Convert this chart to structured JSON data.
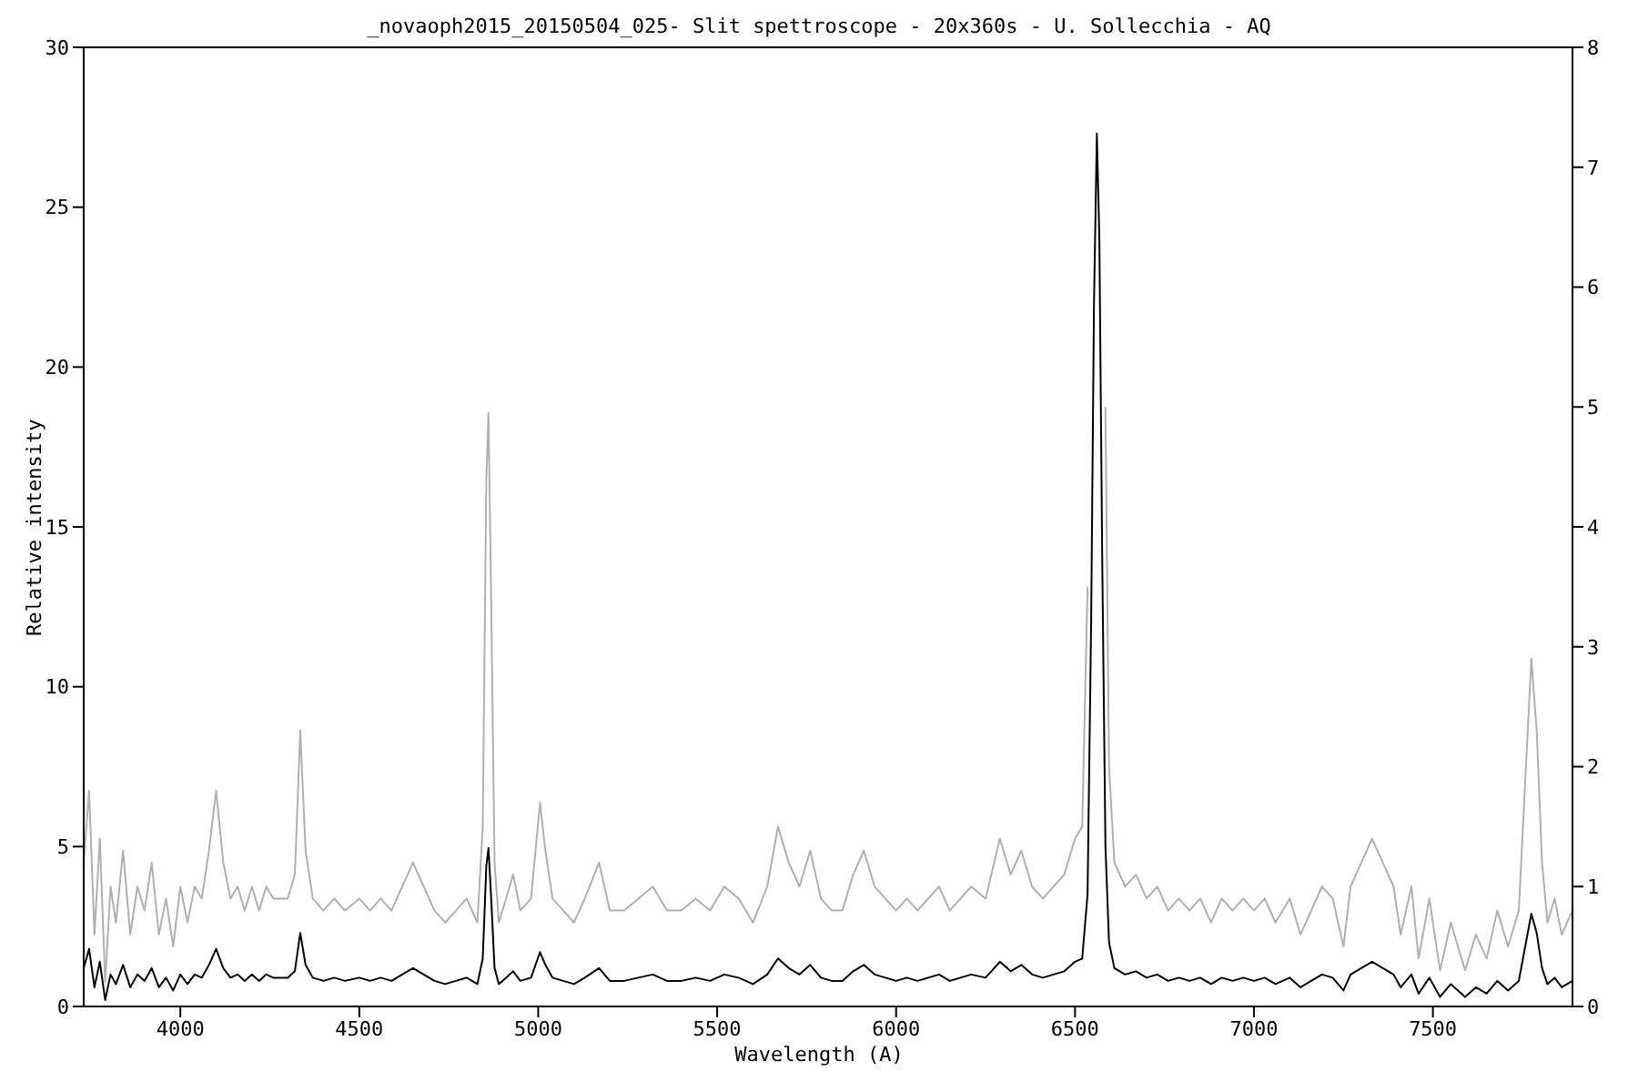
{
  "chart_data": {
    "type": "line",
    "title": "_novaoph2015_20150504_025- Slit spettroscope - 20x360s - U. Sollecchia - AQ",
    "xlabel": "Wavelength (A)",
    "ylabel": "Relative intensity",
    "x": [
      3730,
      3745,
      3760,
      3775,
      3790,
      3805,
      3820,
      3840,
      3860,
      3880,
      3900,
      3920,
      3940,
      3960,
      3980,
      4000,
      4020,
      4040,
      4060,
      4080,
      4100,
      4120,
      4140,
      4160,
      4180,
      4200,
      4220,
      4240,
      4260,
      4280,
      4300,
      4320,
      4335,
      4350,
      4370,
      4400,
      4430,
      4460,
      4500,
      4530,
      4560,
      4590,
      4620,
      4650,
      4680,
      4710,
      4740,
      4770,
      4800,
      4830,
      4845,
      4855,
      4861,
      4868,
      4878,
      4890,
      4910,
      4930,
      4950,
      4980,
      5005,
      5020,
      5040,
      5070,
      5100,
      5130,
      5170,
      5200,
      5240,
      5280,
      5320,
      5360,
      5400,
      5440,
      5480,
      5520,
      5560,
      5600,
      5640,
      5670,
      5700,
      5730,
      5760,
      5790,
      5820,
      5850,
      5880,
      5910,
      5940,
      5970,
      6000,
      6030,
      6060,
      6090,
      6120,
      6150,
      6180,
      6210,
      6250,
      6290,
      6320,
      6350,
      6380,
      6410,
      6440,
      6470,
      6500,
      6520,
      6535,
      6545,
      6553,
      6561,
      6568,
      6576,
      6585,
      6595,
      6610,
      6640,
      6670,
      6700,
      6730,
      6760,
      6790,
      6820,
      6850,
      6880,
      6910,
      6940,
      6970,
      7000,
      7030,
      7060,
      7100,
      7130,
      7160,
      7190,
      7220,
      7250,
      7270,
      7300,
      7330,
      7360,
      7390,
      7410,
      7440,
      7460,
      7490,
      7520,
      7550,
      7590,
      7620,
      7650,
      7680,
      7710,
      7740,
      7760,
      7775,
      7790,
      7805,
      7820,
      7840,
      7860,
      7890
    ],
    "series": [
      {
        "color": "#b0b0b0",
        "axis": "y2",
        "values": [
          1.2,
          1.8,
          0.6,
          1.4,
          0.2,
          1.0,
          0.7,
          1.3,
          0.6,
          1.0,
          0.8,
          1.2,
          0.6,
          0.9,
          0.5,
          1.0,
          0.7,
          1.0,
          0.9,
          1.3,
          1.8,
          1.2,
          0.9,
          1.0,
          0.8,
          1.0,
          0.8,
          1.0,
          0.9,
          0.9,
          0.9,
          1.1,
          2.3,
          1.3,
          0.9,
          0.8,
          0.9,
          0.8,
          0.9,
          0.8,
          0.9,
          0.8,
          1.0,
          1.2,
          1.0,
          0.8,
          0.7,
          0.8,
          0.9,
          0.7,
          1.5,
          4.4,
          4.95,
          3.5,
          1.2,
          0.7,
          0.9,
          1.1,
          0.8,
          0.9,
          1.7,
          1.3,
          0.9,
          0.8,
          0.7,
          0.9,
          1.2,
          0.8,
          0.8,
          0.9,
          1.0,
          0.8,
          0.8,
          0.9,
          0.8,
          1.0,
          0.9,
          0.7,
          1.0,
          1.5,
          1.2,
          1.0,
          1.3,
          0.9,
          0.8,
          0.8,
          1.1,
          1.3,
          1.0,
          0.9,
          0.8,
          0.9,
          0.8,
          0.9,
          1.0,
          0.8,
          0.9,
          1.0,
          0.9,
          1.4,
          1.1,
          1.3,
          1.0,
          0.9,
          1.0,
          1.1,
          1.4,
          1.5,
          3.5,
          null,
          null,
          null,
          null,
          null,
          5.0,
          2.0,
          1.2,
          1.0,
          1.1,
          0.9,
          1.0,
          0.8,
          0.9,
          0.8,
          0.9,
          0.7,
          0.9,
          0.8,
          0.9,
          0.8,
          0.9,
          0.7,
          0.9,
          0.6,
          0.8,
          1.0,
          0.9,
          0.5,
          1.0,
          1.2,
          1.4,
          1.2,
          1.0,
          0.6,
          1.0,
          0.4,
          0.9,
          0.3,
          0.7,
          0.3,
          0.6,
          0.4,
          0.8,
          0.5,
          0.8,
          2.0,
          2.9,
          2.3,
          1.2,
          0.7,
          0.9,
          0.6,
          0.8
        ]
      },
      {
        "color": "#000000",
        "values": [
          1.2,
          1.8,
          0.6,
          1.4,
          0.2,
          1.0,
          0.7,
          1.3,
          0.6,
          1.0,
          0.8,
          1.2,
          0.6,
          0.9,
          0.5,
          1.0,
          0.7,
          1.0,
          0.9,
          1.3,
          1.8,
          1.2,
          0.9,
          1.0,
          0.8,
          1.0,
          0.8,
          1.0,
          0.9,
          0.9,
          0.9,
          1.1,
          2.3,
          1.3,
          0.9,
          0.8,
          0.9,
          0.8,
          0.9,
          0.8,
          0.9,
          0.8,
          1.0,
          1.2,
          1.0,
          0.8,
          0.7,
          0.8,
          0.9,
          0.7,
          1.5,
          4.4,
          4.95,
          3.5,
          1.2,
          0.7,
          0.9,
          1.1,
          0.8,
          0.9,
          1.7,
          1.3,
          0.9,
          0.8,
          0.7,
          0.9,
          1.2,
          0.8,
          0.8,
          0.9,
          1.0,
          0.8,
          0.8,
          0.9,
          0.8,
          1.0,
          0.9,
          0.7,
          1.0,
          1.5,
          1.2,
          1.0,
          1.3,
          0.9,
          0.8,
          0.8,
          1.1,
          1.3,
          1.0,
          0.9,
          0.8,
          0.9,
          0.8,
          0.9,
          1.0,
          0.8,
          0.9,
          1.0,
          0.9,
          1.4,
          1.1,
          1.3,
          1.0,
          0.9,
          1.0,
          1.1,
          1.4,
          1.5,
          3.5,
          12,
          22,
          27.3,
          24,
          14,
          5.0,
          2.0,
          1.2,
          1.0,
          1.1,
          0.9,
          1.0,
          0.8,
          0.9,
          0.8,
          0.9,
          0.7,
          0.9,
          0.8,
          0.9,
          0.8,
          0.9,
          0.7,
          0.9,
          0.6,
          0.8,
          1.0,
          0.9,
          0.5,
          1.0,
          1.2,
          1.4,
          1.2,
          1.0,
          0.6,
          1.0,
          0.4,
          0.9,
          0.3,
          0.7,
          0.3,
          0.6,
          0.4,
          0.8,
          0.5,
          0.8,
          2.0,
          2.9,
          2.3,
          1.2,
          0.7,
          0.9,
          0.6,
          0.8
        ]
      }
    ],
    "xlim": [
      3730,
      7890
    ],
    "xticks": [
      4000,
      4500,
      5000,
      5500,
      6000,
      6500,
      7000,
      7500
    ],
    "ylim": [
      0,
      30
    ],
    "yticks": [
      0,
      5,
      10,
      15,
      20,
      25,
      30
    ],
    "y2lim": [
      0,
      8
    ],
    "y2ticks": [
      0,
      1,
      2,
      3,
      4,
      5,
      6,
      7,
      8
    ],
    "grid": false
  }
}
